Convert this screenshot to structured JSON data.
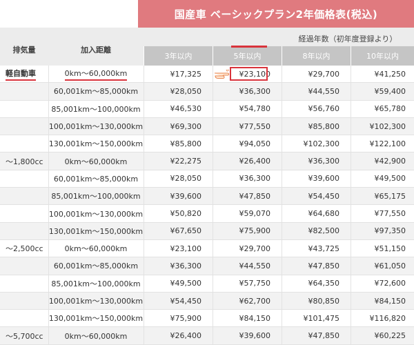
{
  "title": "国産車 ベーシックプラン2年価格表(税込)",
  "headers": {
    "displacement": "排気量",
    "distance": "加入距離",
    "elapsed_group": "経過年数（初年度登録より）",
    "years": [
      "3年以内",
      "5年以内",
      "8年以内",
      "10年以内"
    ]
  },
  "rows": [
    {
      "disp": "軽自動車",
      "dist": "0km〜60,000km",
      "prices": [
        "¥17,325",
        "¥23,100",
        "¥29,700",
        "¥41,250"
      ]
    },
    {
      "disp": "",
      "dist": "60,001km〜85,000km",
      "prices": [
        "¥28,050",
        "¥36,300",
        "¥44,550",
        "¥59,400"
      ]
    },
    {
      "disp": "",
      "dist": "85,001km〜100,000km",
      "prices": [
        "¥46,530",
        "¥54,780",
        "¥56,760",
        "¥65,780"
      ]
    },
    {
      "disp": "",
      "dist": "100,001km〜130,000km",
      "prices": [
        "¥69,300",
        "¥77,550",
        "¥85,800",
        "¥102,300"
      ]
    },
    {
      "disp": "",
      "dist": "130,001km〜150,000km",
      "prices": [
        "¥85,800",
        "¥94,050",
        "¥102,300",
        "¥122,100"
      ]
    },
    {
      "disp": "〜1,800cc",
      "dist": "0km〜60,000km",
      "prices": [
        "¥22,275",
        "¥26,400",
        "¥36,300",
        "¥42,900"
      ]
    },
    {
      "disp": "",
      "dist": "60,001km〜85,000km",
      "prices": [
        "¥28,050",
        "¥36,300",
        "¥39,600",
        "¥49,500"
      ]
    },
    {
      "disp": "",
      "dist": "85,001km〜100,000km",
      "prices": [
        "¥39,600",
        "¥47,850",
        "¥54,450",
        "¥65,175"
      ]
    },
    {
      "disp": "",
      "dist": "100,001km〜130,000km",
      "prices": [
        "¥50,820",
        "¥59,070",
        "¥64,680",
        "¥77,550"
      ]
    },
    {
      "disp": "",
      "dist": "130,001km〜150,000km",
      "prices": [
        "¥67,650",
        "¥75,900",
        "¥82,500",
        "¥97,350"
      ]
    },
    {
      "disp": "〜2,500cc",
      "dist": "0km〜60,000km",
      "prices": [
        "¥23,100",
        "¥29,700",
        "¥43,725",
        "¥51,150"
      ]
    },
    {
      "disp": "",
      "dist": "60,001km〜85,000km",
      "prices": [
        "¥36,300",
        "¥44,550",
        "¥47,850",
        "¥61,050"
      ]
    },
    {
      "disp": "",
      "dist": "85,001km〜100,000km",
      "prices": [
        "¥49,500",
        "¥57,750",
        "¥64,350",
        "¥72,600"
      ]
    },
    {
      "disp": "",
      "dist": "100,001km〜130,000km",
      "prices": [
        "¥54,450",
        "¥62,700",
        "¥80,850",
        "¥84,150"
      ]
    },
    {
      "disp": "",
      "dist": "130,001km〜150,000km",
      "prices": [
        "¥75,900",
        "¥84,150",
        "¥101,475",
        "¥116,820"
      ]
    },
    {
      "disp": "〜5,700cc",
      "dist": "0km〜60,000km",
      "prices": [
        "¥26,400",
        "¥39,600",
        "¥47,850",
        "¥60,225"
      ]
    }
  ],
  "colors": {
    "accent": "#e07a7f",
    "highlight": "#d9333b",
    "subheader": "#c5c5c5"
  },
  "icons": {
    "pointer": "pointing-hand-icon"
  }
}
